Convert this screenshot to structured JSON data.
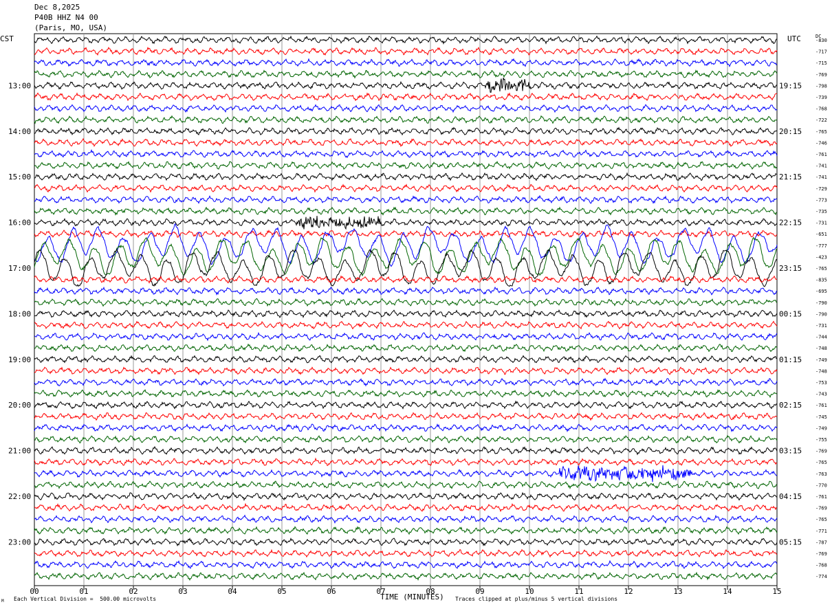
{
  "header": {
    "date": "Dec 8,2025",
    "station": "P40B HHZ N4 00",
    "location": "(Paris, MO, USA)"
  },
  "left_tz": "CST",
  "right_tz": "UTC",
  "dc_label": "DC",
  "footer": {
    "scale_note": "Each Vertical Division =  500.00 microvolts",
    "clip_note": "Traces clipped at plus/minus 5 vertical divisions",
    "corner_mark": "M"
  },
  "colors": {
    "cycle": [
      "#000000",
      "#ff0000",
      "#0000ff",
      "#006400"
    ],
    "grid": "#999999"
  },
  "chart_data": {
    "type": "line",
    "title": "",
    "xlabel": "TIME (MINUTES)",
    "ylabel": "",
    "x_ticks": [
      "00",
      "01",
      "02",
      "03",
      "04",
      "05",
      "06",
      "07",
      "08",
      "09",
      "10",
      "11",
      "12",
      "13",
      "14",
      "15"
    ],
    "xlim": [
      0,
      15
    ],
    "left_hour_labels": [
      "13:00",
      "14:00",
      "15:00",
      "16:00",
      "17:00",
      "18:00",
      "19:00",
      "20:00",
      "21:00",
      "22:00",
      "23:00"
    ],
    "right_hour_labels": [
      "19:15",
      "20:15",
      "21:15",
      "22:15",
      "23:15",
      "00:15",
      "01:15",
      "02:15",
      "03:15",
      "04:15",
      "05:15"
    ],
    "trace_dc_values": [
      "-830",
      "-717",
      "-715",
      "-769",
      "-798",
      "-739",
      "-768",
      "-722",
      "-765",
      "-746",
      "-761",
      "-741",
      "-741",
      "-729",
      "-773",
      "-735",
      "-731",
      "-651",
      "-777",
      "-423",
      "-765",
      "-835",
      "-695",
      "-790",
      "-790",
      "-731",
      "-744",
      "-748",
      "-749",
      "-748",
      "-753",
      "-743",
      "-761",
      "-745",
      "-749",
      "-755",
      "-769",
      "-765",
      "-763",
      "-770",
      "-761",
      "-769",
      "-765",
      "-771",
      "-787",
      "-769",
      "-768",
      "-774"
    ],
    "trace_count": 48,
    "traces_per_hour": 4,
    "minutes_per_trace": 15,
    "grid": true,
    "events": [
      {
        "trace": 4,
        "start_min": 9.1,
        "end_min": 10.0,
        "amplitude": "high"
      },
      {
        "trace": 16,
        "start_min": 5.3,
        "end_min": 7.0,
        "amplitude": "high"
      },
      {
        "trace": 18,
        "start_min": 0.0,
        "end_min": 15.0,
        "amplitude": "clipped-long-period"
      },
      {
        "trace": 19,
        "start_min": 0.0,
        "end_min": 15.0,
        "amplitude": "clipped-long-period"
      },
      {
        "trace": 20,
        "start_min": 0.0,
        "end_min": 15.0,
        "amplitude": "clipped-long-period"
      },
      {
        "trace": 38,
        "start_min": 10.6,
        "end_min": 13.3,
        "amplitude": "high"
      }
    ]
  }
}
